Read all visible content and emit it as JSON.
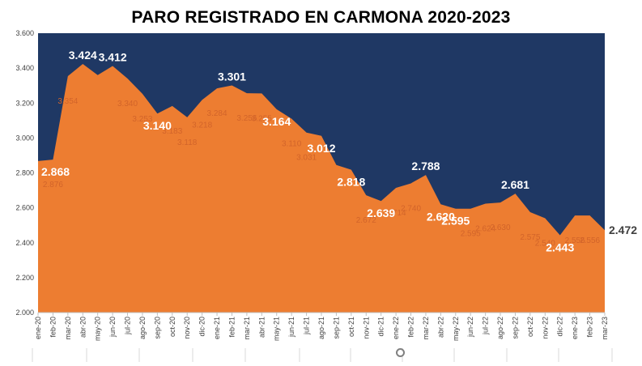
{
  "chart_data": {
    "type": "area",
    "title": "PARO REGISTRADO EN CARMONA 2020-2023",
    "xlabel": "",
    "ylabel": "",
    "ylim": [
      2000,
      3600
    ],
    "yticks": [
      "2.000",
      "2.200",
      "2.400",
      "2.600",
      "2.800",
      "3.000",
      "3.200",
      "3.400",
      "3.600"
    ],
    "plot_background": "#1f3864",
    "area_color": "#ed7d31",
    "grid": false,
    "legend": "none",
    "categories": [
      "ene-20",
      "feb-20",
      "mar-20",
      "abr-20",
      "may-20",
      "jun-20",
      "jul-20",
      "ago-20",
      "sep-20",
      "oct-20",
      "nov-20",
      "dic-20",
      "ene-21",
      "feb-21",
      "mar-21",
      "abr-21",
      "may-21",
      "jun-21",
      "jul-21",
      "ago-21",
      "sep-21",
      "oct-21",
      "nov-21",
      "dic-21",
      "ene-22",
      "feb-22",
      "mar-22",
      "abr-22",
      "may-22",
      "jun-22",
      "jul-22",
      "ago-22",
      "sep-22",
      "oct-22",
      "nov-22",
      "dic-22",
      "ene-23",
      "feb-23",
      "mar-23"
    ],
    "series": [
      {
        "values": [
          2868,
          2876,
          3354,
          3424,
          3360,
          3412,
          3340,
          3253,
          3140,
          3183,
          3118,
          3218,
          3284,
          3301,
          3256,
          3255,
          3164,
          3110,
          3031,
          3012,
          2845,
          2818,
          2672,
          2639,
          2714,
          2740,
          2788,
          2620,
          2595,
          2595,
          2624,
          2630,
          2681,
          2575,
          2540,
          2443,
          2556,
          2556,
          2472
        ],
        "labels_white": [
          {
            "i": 0,
            "text": "2.868"
          },
          {
            "i": 3,
            "text": "3.424"
          },
          {
            "i": 5,
            "text": "3.412"
          },
          {
            "i": 8,
            "text": "3.140"
          },
          {
            "i": 13,
            "text": "3.301"
          },
          {
            "i": 16,
            "text": "3.164"
          },
          {
            "i": 19,
            "text": "3.012"
          },
          {
            "i": 21,
            "text": "2.818"
          },
          {
            "i": 23,
            "text": "2.639"
          },
          {
            "i": 26,
            "text": "2.788"
          },
          {
            "i": 27,
            "text": "2.620"
          },
          {
            "i": 28,
            "text": "2.595"
          },
          {
            "i": 32,
            "text": "2.681"
          },
          {
            "i": 35,
            "text": "2.443"
          }
        ],
        "labels_faint": [
          {
            "i": 1,
            "text": "2.876"
          },
          {
            "i": 2,
            "text": "3.354"
          },
          {
            "i": 6,
            "text": "3.340"
          },
          {
            "i": 7,
            "text": "3.253"
          },
          {
            "i": 9,
            "text": "3.183"
          },
          {
            "i": 10,
            "text": "3.118"
          },
          {
            "i": 11,
            "text": "3.218"
          },
          {
            "i": 12,
            "text": "3.284"
          },
          {
            "i": 14,
            "text": "3.256"
          },
          {
            "i": 15,
            "text": "3.255"
          },
          {
            "i": 17,
            "text": "3.110"
          },
          {
            "i": 18,
            "text": "3.031"
          },
          {
            "i": 22,
            "text": "2.672"
          },
          {
            "i": 24,
            "text": "2.714"
          },
          {
            "i": 25,
            "text": "2.740"
          },
          {
            "i": 29,
            "text": "2.595"
          },
          {
            "i": 30,
            "text": "2.624"
          },
          {
            "i": 31,
            "text": "2.630"
          },
          {
            "i": 33,
            "text": "2.575"
          },
          {
            "i": 34,
            "text": "2.540"
          },
          {
            "i": 36,
            "text": "2.556"
          },
          {
            "i": 37,
            "text": "2.556"
          }
        ],
        "last_label": {
          "i": 38,
          "text": "2.472"
        }
      }
    ]
  }
}
